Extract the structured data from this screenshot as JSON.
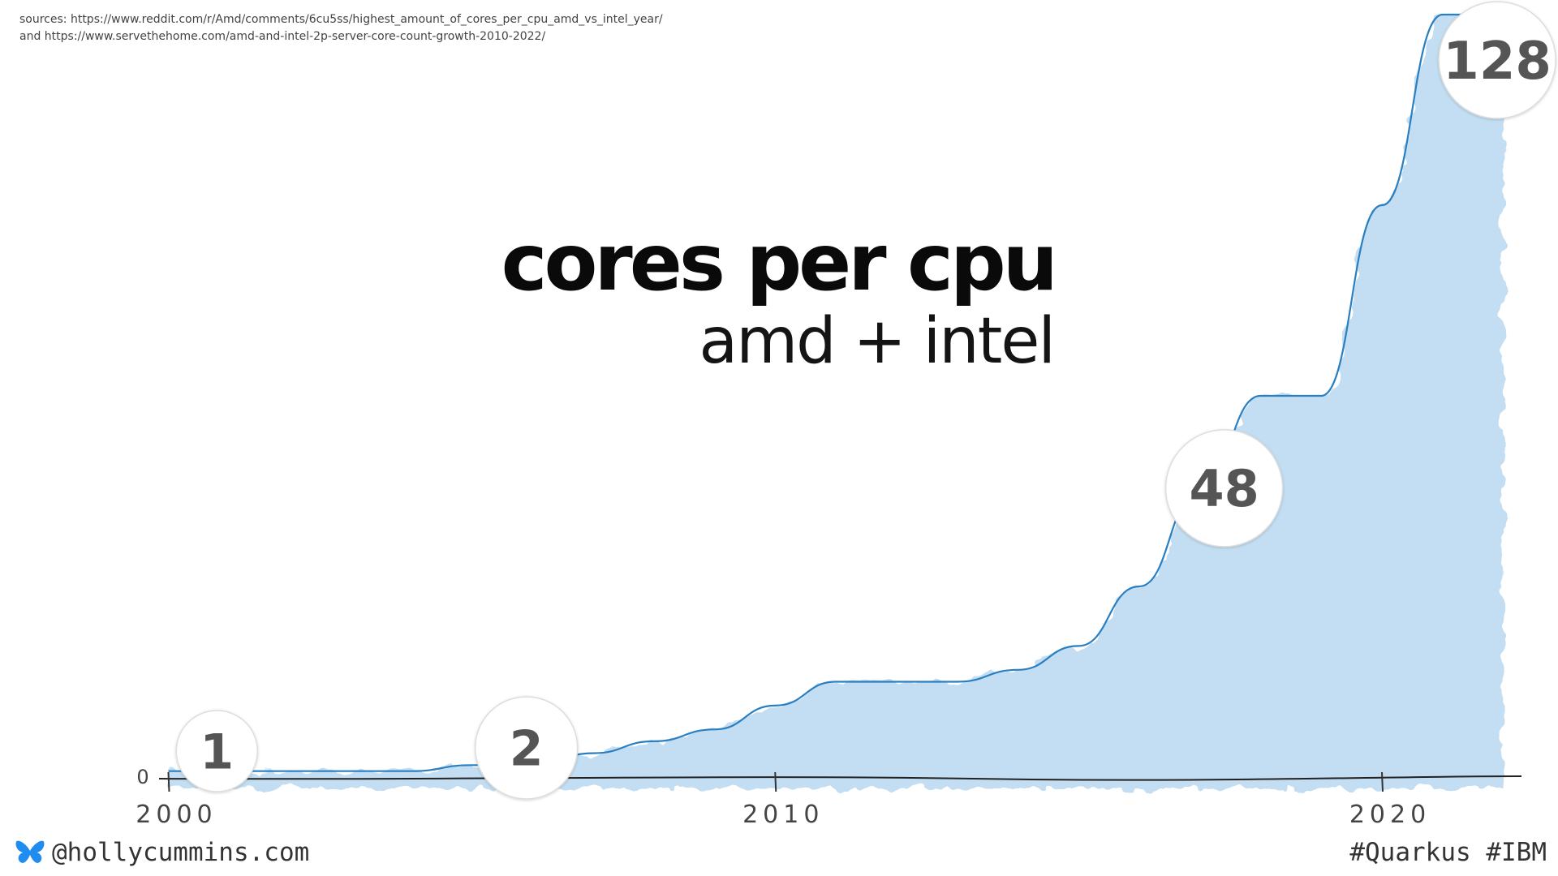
{
  "sources": {
    "line1": "sources: https://www.reddit.com/r/Amd/comments/6cu5ss/highest_amount_of_cores_per_cpu_amd_vs_intel_year/",
    "line2": "and https://www.servethehome.com/amd-and-intel-2p-server-core-count-growth-2010-2022/"
  },
  "footer": {
    "handle": "@hollycummins.com",
    "tags": "#Quarkus #IBM",
    "icon": "butterfly-icon"
  },
  "colors": {
    "line": "#2a7fc1",
    "fill": "#b9d8f0",
    "badge_text": "#555555"
  },
  "chart_data": {
    "type": "area",
    "title": "cores per cpu",
    "subtitle": "amd + intel",
    "x_ticks": [
      {
        "value": 2000,
        "label": "2000"
      },
      {
        "value": 2010,
        "label": "2010"
      },
      {
        "value": 2020,
        "label": "2020"
      }
    ],
    "y_ticks": [
      {
        "value": 0,
        "label": "0"
      }
    ],
    "xlim": [
      1999.9,
      2022.3
    ],
    "ylim": [
      0,
      128
    ],
    "grid": false,
    "legend": "none",
    "series": [
      {
        "x": [
          2000,
          2001,
          2002,
          2003,
          2004,
          2005,
          2006,
          2007,
          2008,
          2009,
          2010,
          2011,
          2012,
          2013,
          2014,
          2015,
          2016,
          2017,
          2018,
          2019,
          2020,
          2021,
          2022
        ],
        "y": [
          1,
          1,
          1,
          1,
          1,
          2,
          2,
          4,
          6,
          8,
          12,
          16,
          16,
          16,
          18,
          22,
          32,
          48,
          64,
          64,
          96,
          128,
          128
        ]
      }
    ],
    "annotations": [
      {
        "x": 2000.8,
        "y": 1,
        "label": "1"
      },
      {
        "x": 2005.9,
        "y": 2,
        "label": "2"
      },
      {
        "x": 2017.4,
        "y": 48,
        "label": "48"
      },
      {
        "x": 2021.9,
        "y": 128,
        "label": "128"
      }
    ]
  }
}
